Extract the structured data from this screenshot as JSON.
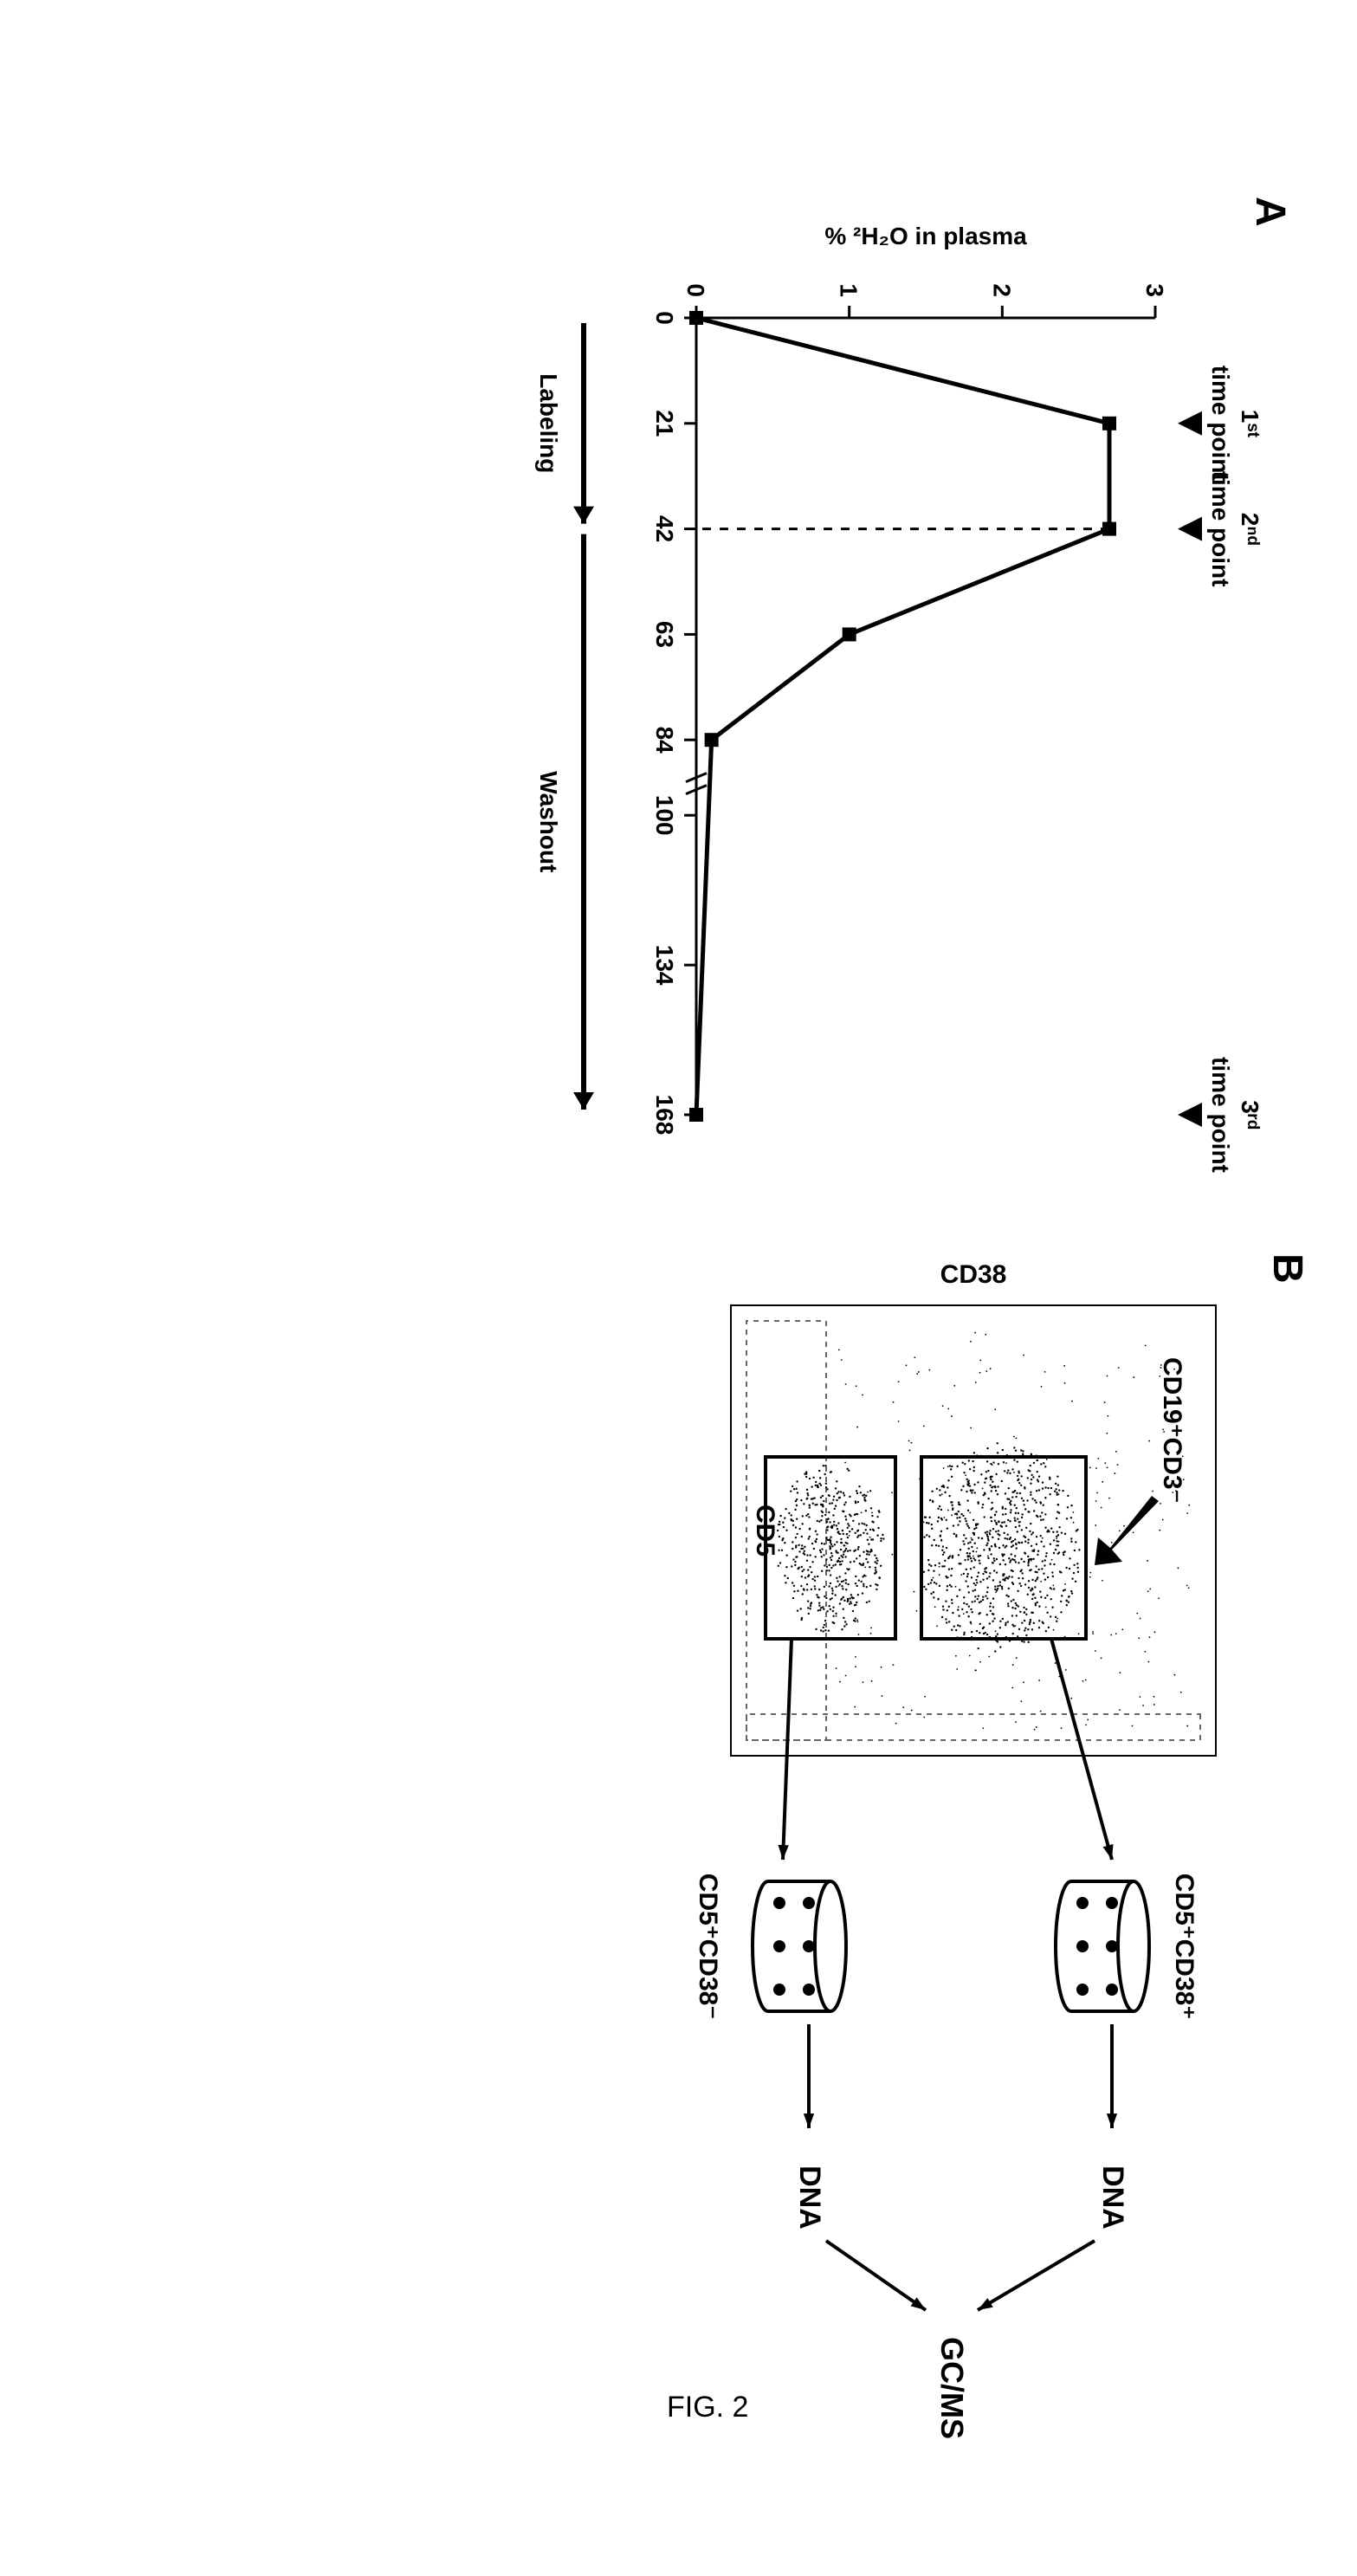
{
  "caption": "FIG. 2",
  "panelA": {
    "label": "A",
    "type": "line",
    "x_ticks": [
      0,
      21,
      42,
      63,
      84,
      100,
      134,
      168
    ],
    "y_ticks": [
      0,
      1,
      2,
      3
    ],
    "ylabel": "% ²H₂O in plasma",
    "points": [
      {
        "x": 0,
        "y": 0.0
      },
      {
        "x": 21,
        "y": 2.7
      },
      {
        "x": 42,
        "y": 2.7
      },
      {
        "x": 63,
        "y": 1.0
      },
      {
        "x": 84,
        "y": 0.1
      },
      {
        "x": 168,
        "y": 0.0
      }
    ],
    "timepoints": [
      {
        "x": 21,
        "label_top": "1ˢᵗ",
        "label_bot": "time point"
      },
      {
        "x": 42,
        "label_top": "2ⁿᵈ",
        "label_bot": "time point"
      },
      {
        "x": 168,
        "label_top": "3ʳᵈ",
        "label_bot": "time point"
      }
    ],
    "phases": [
      {
        "label": "Labeling",
        "from": 0,
        "to": 42
      },
      {
        "label": "Washout",
        "from": 42,
        "to": 168
      }
    ],
    "axis_break_at": 92,
    "ylim": [
      0,
      3
    ],
    "colors": {
      "line": "#000000",
      "bg": "#ffffff"
    },
    "marker": "square"
  },
  "panelB": {
    "label": "B",
    "scatter": {
      "pre_gate": "CD19⁺CD3⁻",
      "x_axis": "CD5",
      "y_axis": "CD38",
      "gates": [
        {
          "name": "CD5⁺CD38⁺",
          "rect_desc": "upper gate"
        },
        {
          "name": "CD5⁺CD38⁻",
          "rect_desc": "lower gate"
        }
      ],
      "frame_color": "#000000",
      "dash_frame_color": "#666666"
    },
    "outputs": {
      "sorted": [
        "CD5⁺CD38⁺",
        "CD5⁺CD38⁻"
      ],
      "extract": "DNA",
      "endpoint": "GC/MS"
    }
  }
}
